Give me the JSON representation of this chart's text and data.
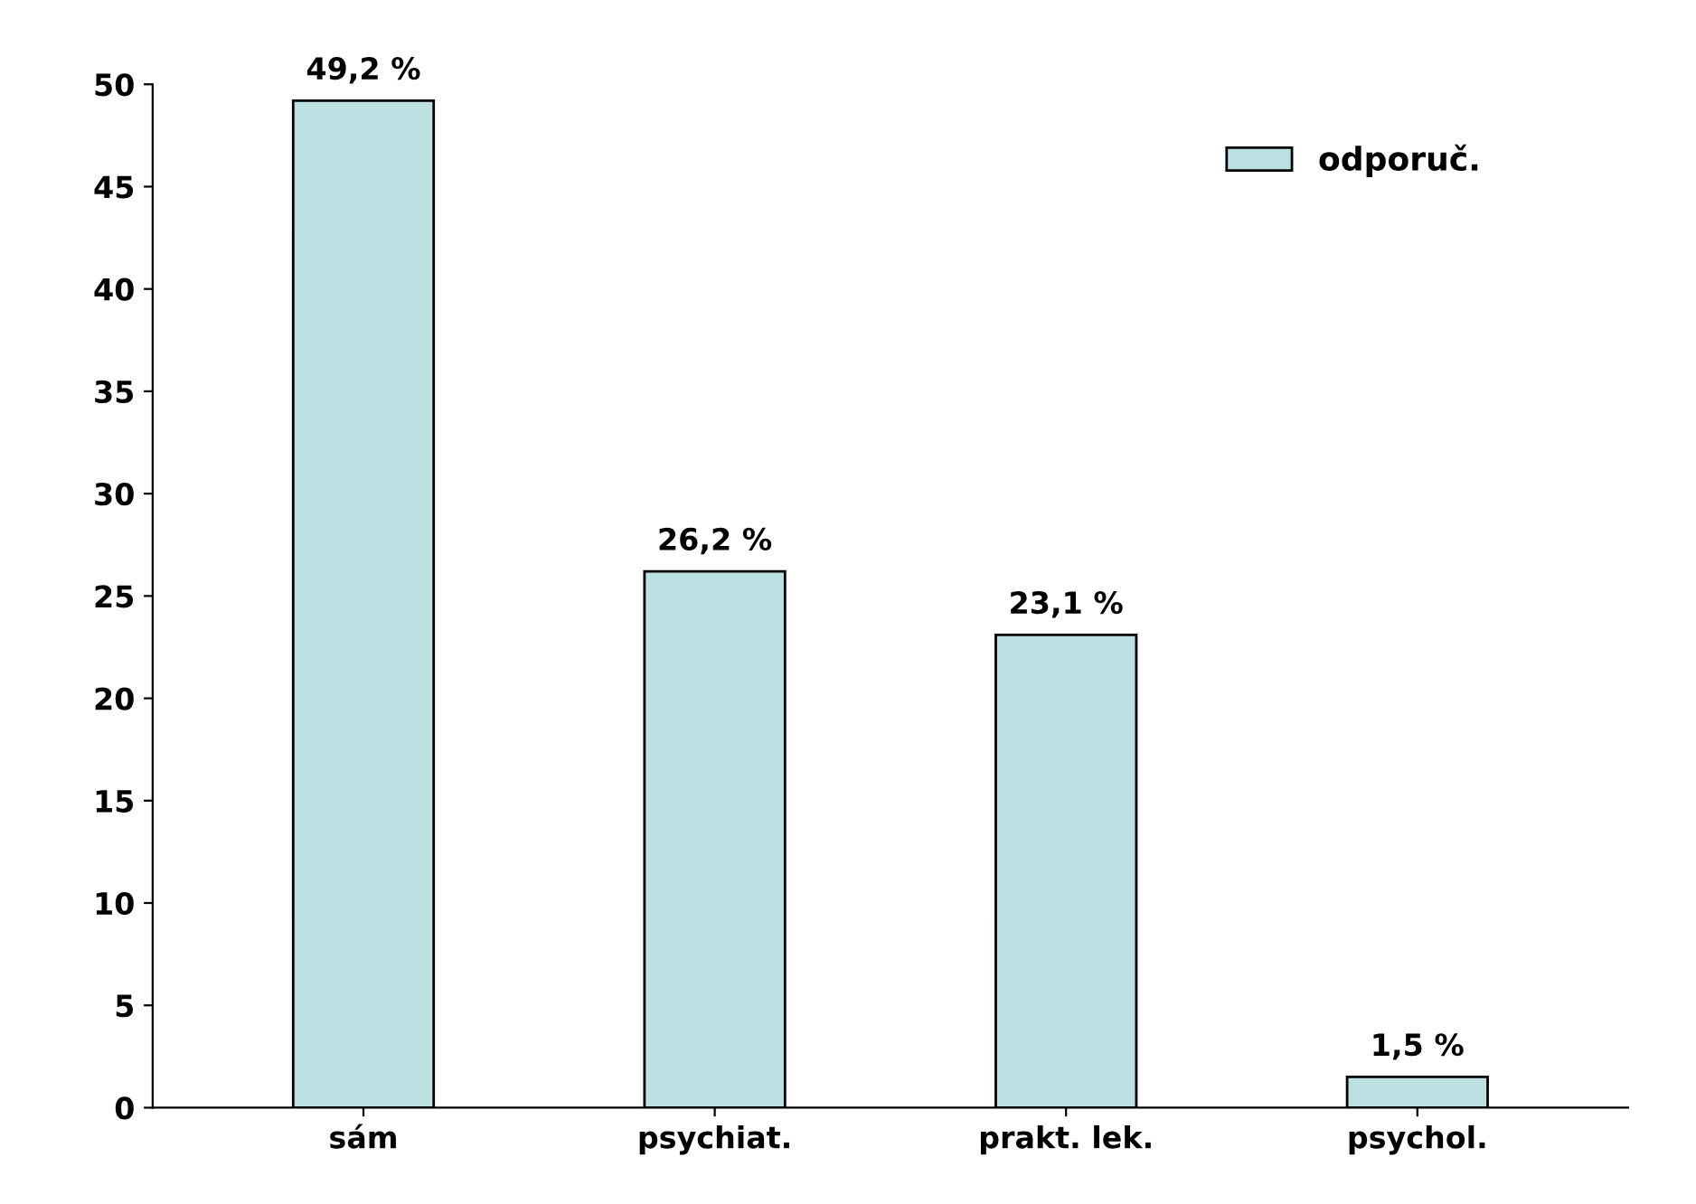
{
  "chart_data": {
    "type": "bar",
    "categories": [
      "sám",
      "psychiat.",
      "prakt. lek.",
      "psychol."
    ],
    "series": [
      {
        "name": "odporuč.",
        "color": "#bde0e3",
        "values": [
          49.2,
          26.2,
          23.1,
          1.5
        ],
        "value_labels": [
          "49,2 %",
          "26,2 %",
          "23,1 %",
          "1,5 %"
        ]
      }
    ],
    "ylim": [
      0,
      50
    ],
    "yticks": [
      0,
      5,
      10,
      15,
      20,
      25,
      30,
      35,
      40,
      45,
      50
    ],
    "grid": false,
    "legend": "top right"
  }
}
